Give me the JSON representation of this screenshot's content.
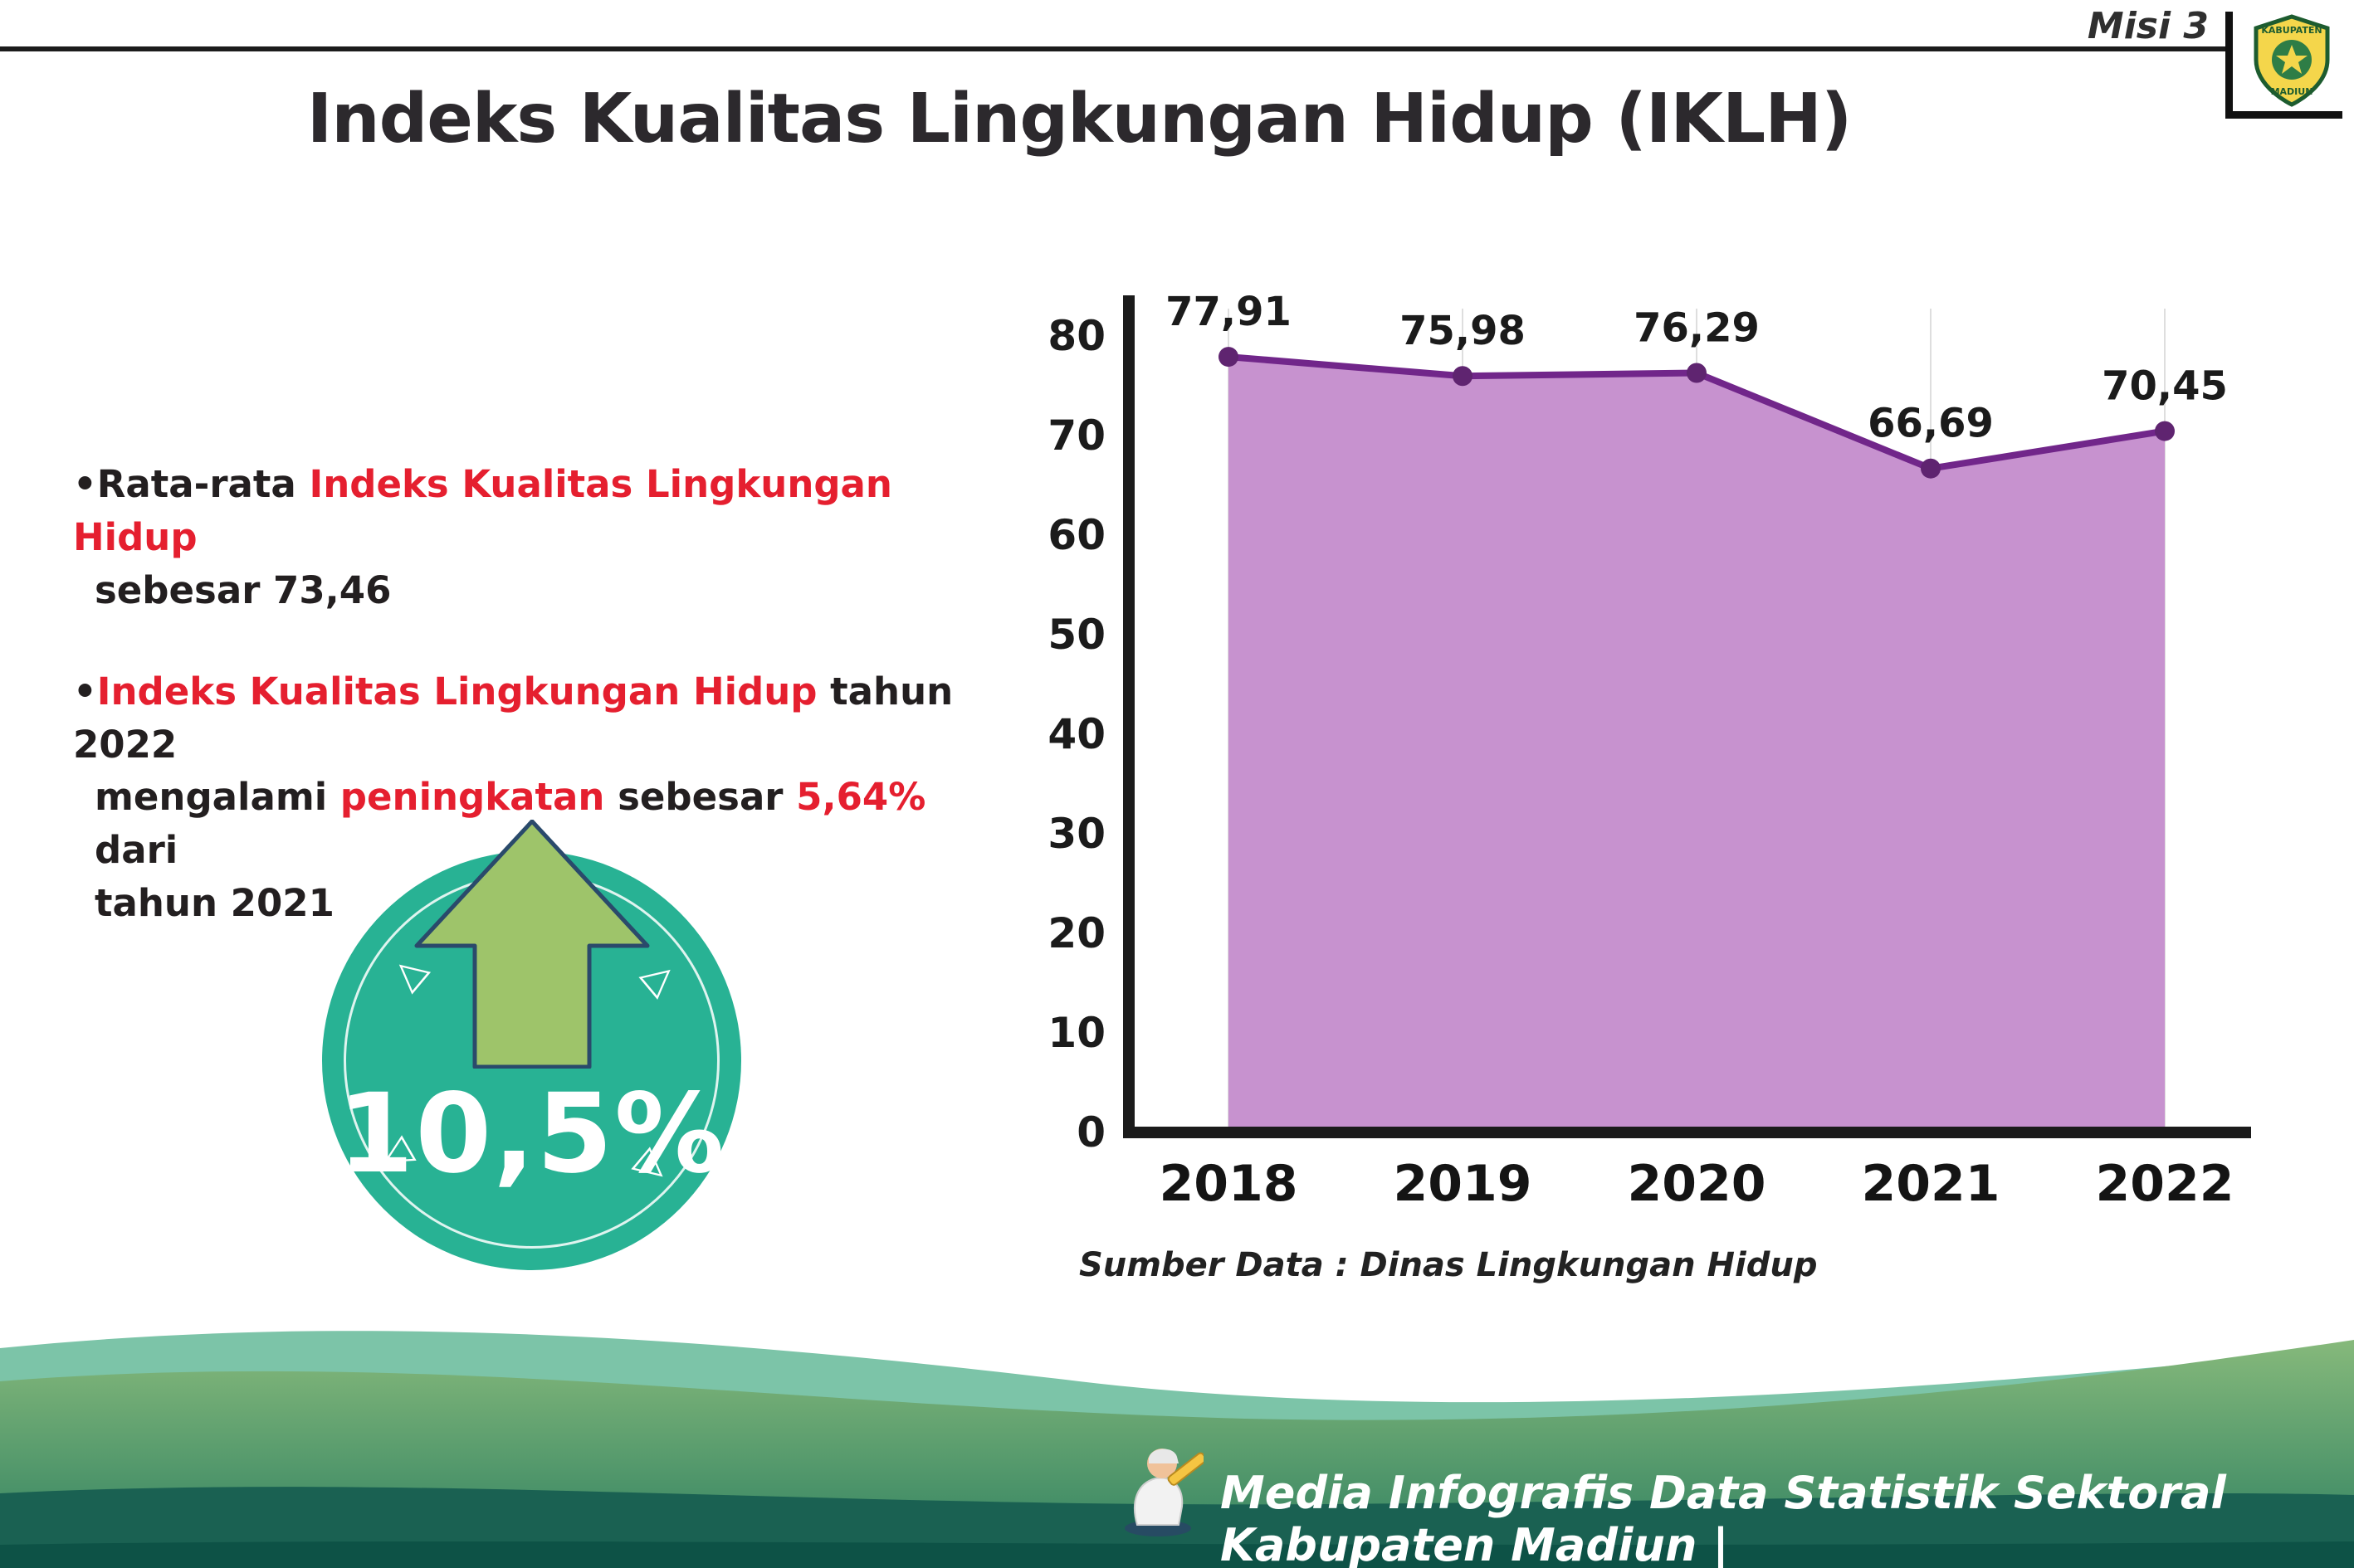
{
  "header": {
    "misi_label": "Misi 3"
  },
  "logo": {
    "line1": "KABUPATEN",
    "line2": "MADIUN"
  },
  "title": "Indeks Kualitas Lingkungan Hidup (IKLH)",
  "bullets": {
    "bullet_char": "•",
    "b1_black1": "Rata-rata ",
    "b1_red": "Indeks Kualitas Lingkungan Hidup",
    "b1_line2": "sebesar 73,46",
    "b2_red1": "Indeks Kualitas Lingkungan Hidup",
    "b2_black1": " tahun 2022",
    "b2_l2_black1": "mengalami ",
    "b2_l2_red1": "peningkatan",
    "b2_l2_black2": " sebesar ",
    "b2_l2_red2": "5,64%",
    "b2_l2_black3": " dari",
    "b2_line3": "tahun 2021"
  },
  "badge": {
    "value": "10,5%",
    "marks": [
      "▷",
      "▷",
      "▷",
      "▷"
    ]
  },
  "chart_data": {
    "type": "area",
    "title": "Indeks Kualitas Lingkungan Hidup (IKLH)",
    "categories": [
      "2018",
      "2019",
      "2020",
      "2021",
      "2022"
    ],
    "values": [
      77.91,
      75.98,
      76.29,
      66.69,
      70.45
    ],
    "labels": [
      "77,91",
      "75,98",
      "76,29",
      "66,69",
      "70,45"
    ],
    "ylim": [
      0,
      80
    ],
    "yticks": [
      0,
      10,
      20,
      30,
      40,
      50,
      60,
      70,
      80
    ],
    "grid": "vertical",
    "legend": "none",
    "line_color": "#71268a",
    "fill_color": "#c792cf",
    "point_color": "#5f2470",
    "axis_color": "#1b1b1b",
    "source": "Sumber Data : Dinas Lingkungan Hidup"
  },
  "footer": {
    "text": "Media Infografis Data Statistik Sektoral Kabupaten Madiun |"
  }
}
